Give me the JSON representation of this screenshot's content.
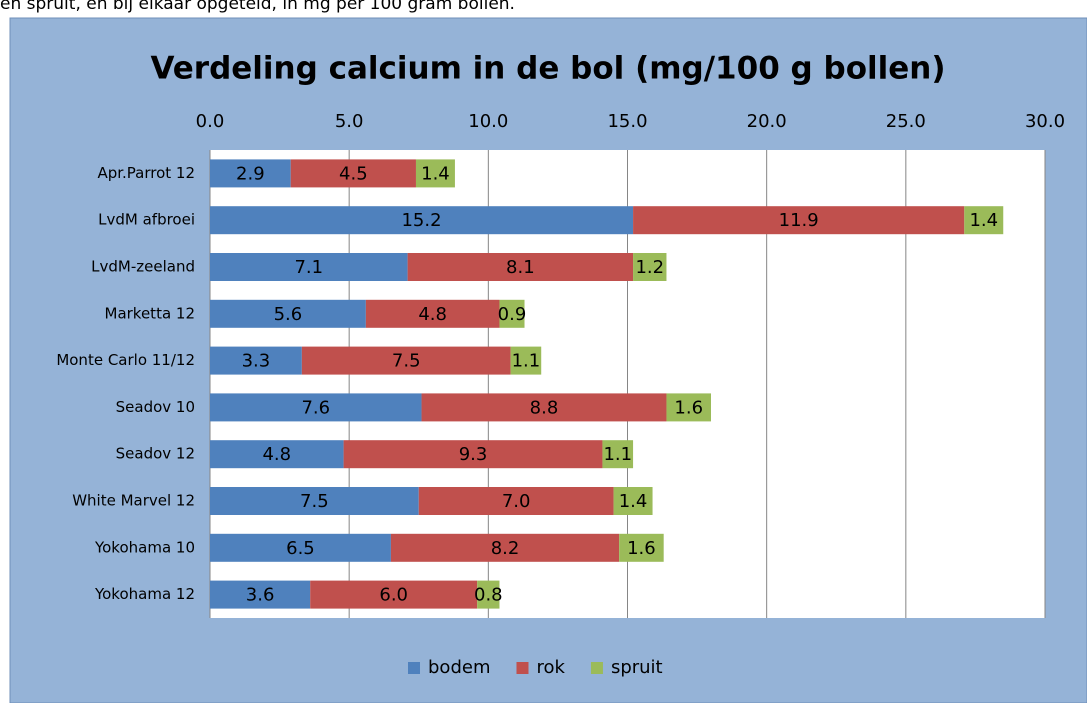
{
  "caption": "en spruit, en bij elkaar opgeteld, in mg per 100 gram bollen.",
  "chart_data": {
    "type": "stacked-barh",
    "title": "Verdeling calcium in de bol (mg/100 g bollen)",
    "categories": [
      "Apr.Parrot 12",
      "LvdM afbroei",
      "LvdM-zeeland",
      "Marketta 12",
      "Monte Carlo 11/12",
      "Seadov 10",
      "Seadov 12",
      "White Marvel 12",
      "Yokohama 10",
      "Yokohama 12"
    ],
    "series": [
      {
        "name": "bodem",
        "color": "#4f81bd",
        "values": [
          2.9,
          15.2,
          7.1,
          5.6,
          3.3,
          7.6,
          4.8,
          7.5,
          6.5,
          3.6
        ],
        "value_labels": [
          "2.9",
          "15.2",
          "7.1",
          "5.6",
          "3.3",
          "7.6",
          "4.8",
          "7.5",
          "6.5",
          "3.6"
        ]
      },
      {
        "name": "rok",
        "color": "#c0504d",
        "values": [
          4.5,
          11.9,
          8.1,
          4.8,
          7.5,
          8.8,
          9.3,
          7,
          8.2,
          6
        ],
        "value_labels": [
          "4.5",
          "11.9",
          "8.1",
          "4.8",
          "7.5",
          "8.8",
          "9.3",
          "7.0",
          "8.2",
          "6.0"
        ]
      },
      {
        "name": "spruit",
        "color": "#9bbb59",
        "values": [
          1.4,
          1.4,
          1.2,
          0.9,
          1.1,
          1.6,
          1.1,
          1.4,
          1.6,
          0.8
        ],
        "value_labels": [
          "1.4",
          "1.4",
          "1.2",
          "0.9",
          "1.1",
          "1.6",
          "1.1",
          "1.4",
          "1.6",
          "0.8"
        ]
      }
    ],
    "xlim": [
      0,
      30
    ],
    "xticks": [
      {
        "value": 0,
        "label": "0.0"
      },
      {
        "value": 5,
        "label": "5.0"
      },
      {
        "value": 10,
        "label": "10.0"
      },
      {
        "value": 15,
        "label": "15.0"
      },
      {
        "value": 20,
        "label": "20.0"
      },
      {
        "value": 25,
        "label": "25.0"
      },
      {
        "value": 30,
        "label": "30.0"
      }
    ],
    "grid": true,
    "legend": "bottom"
  }
}
